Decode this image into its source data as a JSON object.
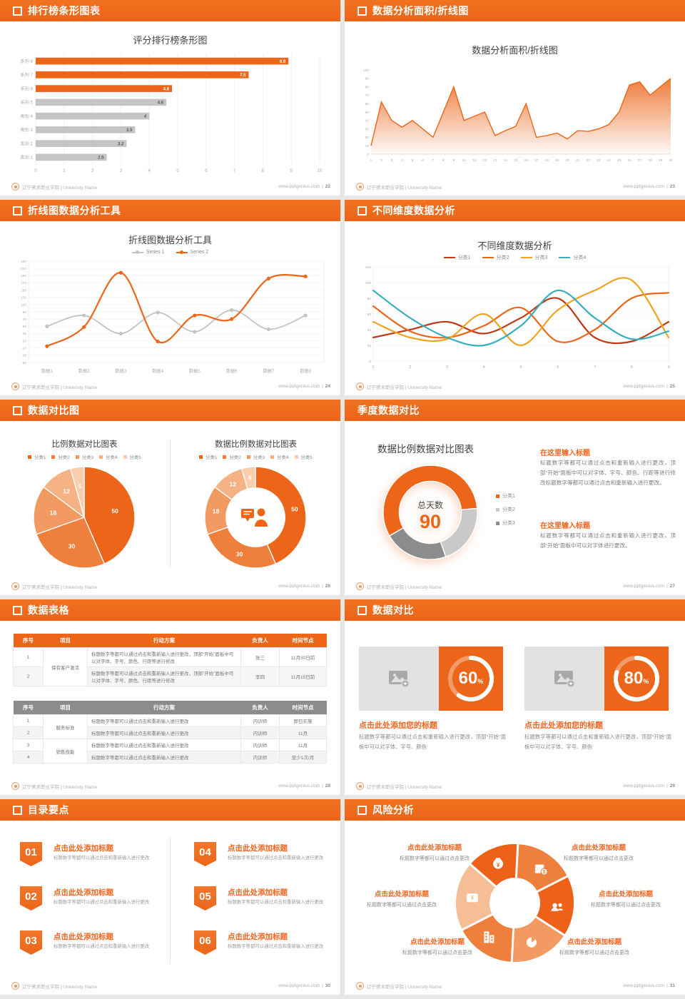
{
  "footer": {
    "school": "辽宁美术职业学院 | University Name",
    "site": "www.pptgenius.com",
    "divider": "|"
  },
  "accent": {
    "orange": "#EC6519",
    "header_orange": "#EE6C1D",
    "gray_bar": "#C5C5C5",
    "table_gray": "#8C8C8C"
  },
  "slides": [
    {
      "header": "排行榜条形图表",
      "page": "22"
    },
    {
      "header": "数据分析面积/折线图",
      "page": "23"
    },
    {
      "header": "折线图数据分析工具",
      "page": "24"
    },
    {
      "header": "不同维度数据分析",
      "page": "25"
    },
    {
      "header": "数据对比图",
      "page": "26"
    },
    {
      "header": "季度数据对比",
      "page": "27",
      "legend": [
        "分类1",
        "分类2",
        "分类3"
      ],
      "block1_title": "在这里输入标题",
      "block1_body": "标题数字等都可以通过点击和重新输入进行更改，顶部“开始”面板中可以对字体、字号、颜色、行距等进行修改标题数字等都可以通过点击和重新输入进行更改。",
      "block2_title": "在这里输入标题",
      "block2_body": "标题数字等都可以通过点击和重新输入进行更改，顶部“开始”面板中可以对字体进行更改。"
    },
    {
      "header": "数据表格",
      "page": "28",
      "table1": {
        "h": [
          "序号",
          "项目",
          "行动方案",
          "负责人",
          "时间节点"
        ],
        "item12": "保有客户激活",
        "r1": {
          "no": "1",
          "plan": "标题数字等都可以通过点击和重新输入进行更改，顶部“开始”面板中可以对字体、字号、颜色、行距等进行修改",
          "owner": "张三",
          "time": "11月30日前"
        },
        "r2": {
          "no": "2",
          "plan": "标题数字等都可以通过点击和重新输入进行更改，顶部“开始”面板中可以对字体、字号、颜色、行距等进行修改",
          "owner": "李四",
          "time": "11月15日前"
        }
      },
      "table2": {
        "h": [
          "序号",
          "项目",
          "行动方案",
          "负责人",
          "时间节点"
        ],
        "item12": "服务标准",
        "item34": "销售技能",
        "r1": {
          "no": "1",
          "plan": "标题数字等都可以通过点击和重新输入进行更改",
          "owner": "内训师",
          "time": "即日实施"
        },
        "r2": {
          "no": "2",
          "plan": "标题数字等都可以通过点击和重新输入进行更改",
          "owner": "内训师",
          "time": "11月"
        },
        "r3": {
          "no": "3",
          "plan": "标题数字等都可以通过点击和重新输入进行更改",
          "owner": "内训师",
          "time": "11月"
        },
        "r4": {
          "no": "4",
          "plan": "标题数字等都可以通过点击和重新输入进行更改",
          "owner": "内训师",
          "time": "至少1次/月"
        }
      }
    },
    {
      "header": "数据对比",
      "page": "29",
      "card_title": "点击此处添加您的标题",
      "card_body": "标题数字等都可以通过点击和重新输入进行更改，顶部“开始”面板中可以对字体、字号、颜色",
      "cards": [
        {
          "percent": "60",
          "symbol": "%"
        },
        {
          "percent": "80",
          "symbol": "%"
        }
      ]
    },
    {
      "header": "目录要点",
      "page": "30",
      "item_title": "点击此处添加标题",
      "item_desc": "标题数字等都可以通过点击和重新输入进行更改",
      "items": [
        {
          "num": "01"
        },
        {
          "num": "02"
        },
        {
          "num": "03"
        },
        {
          "num": "04"
        },
        {
          "num": "05"
        },
        {
          "num": "06"
        }
      ]
    },
    {
      "header": "风险分析",
      "page": "31",
      "item_title": "点击此处添加标题",
      "item_desc": "标题数字等都可以通过点击更改"
    }
  ],
  "chart_data": [
    {
      "type": "bar",
      "orientation": "horizontal",
      "target": "c-hbar",
      "title": "评分排行榜条形图",
      "categories": [
        "系列 8",
        "系列 7",
        "系列 6",
        "系列 5",
        "类别 4",
        "类别 3",
        "类别 2",
        "类别 1"
      ],
      "values": [
        8.9,
        7.5,
        4.8,
        4.6,
        4,
        3.5,
        3.2,
        2.5
      ],
      "bar_colors": [
        "#EC6519",
        "#EC6519",
        "#EC6519",
        "#C5C5C5",
        "#C5C5C5",
        "#C5C5C5",
        "#C5C5C5",
        "#C5C5C5"
      ],
      "xlim": [
        0,
        10
      ],
      "xtick_step": 1,
      "grid": true
    },
    {
      "type": "area",
      "target": "c-area",
      "title": "数据分析面积/折线图",
      "x": [
        1,
        2,
        3,
        4,
        5,
        6,
        7,
        8,
        9,
        10,
        11,
        12,
        13,
        14,
        15,
        16,
        17,
        18,
        19,
        20,
        21,
        22,
        23,
        24,
        25,
        26,
        27,
        28,
        29,
        30
      ],
      "values": [
        10,
        62,
        40,
        32,
        40,
        30,
        20,
        50,
        80,
        40,
        45,
        50,
        22,
        28,
        33,
        60,
        20,
        22,
        25,
        18,
        28,
        27,
        30,
        35,
        50,
        82,
        86,
        70,
        80,
        90
      ],
      "ylim": [
        0,
        100
      ],
      "ytick_step": 10,
      "color": "#EC6519"
    },
    {
      "type": "line",
      "target": "c-line2",
      "title": "折线图数据分析工具",
      "categories": [
        "数据1",
        "数据2",
        "数据3",
        "数据4",
        "数据5",
        "数据6",
        "数据7",
        "数据8"
      ],
      "series": [
        {
          "name": "Series 1",
          "color": "#C3C3C3",
          "values": [
            50,
            80,
            30,
            88,
            35,
            95,
            42,
            80
          ]
        },
        {
          "name": "Series 2",
          "color": "#EC6519",
          "values": [
            -5,
            48,
            198,
            8,
            80,
            70,
            182,
            188
          ]
        }
      ],
      "ylim": [
        -50,
        230
      ],
      "ytick_step": 20,
      "markers": true,
      "smooth": true,
      "legend_position": "top"
    },
    {
      "type": "line",
      "target": "c-line4",
      "title": "不同维度数据分析",
      "x": [
        1,
        2,
        3,
        4,
        5,
        6,
        7,
        8,
        9
      ],
      "series": [
        {
          "name": "分类1",
          "color": "#BE3A17",
          "values": [
            30,
            40,
            50,
            35,
            55,
            80,
            30,
            25,
            50
          ]
        },
        {
          "name": "分类2",
          "color": "#EC6519",
          "values": [
            70,
            38,
            30,
            45,
            68,
            25,
            40,
            80,
            87
          ]
        },
        {
          "name": "分类3",
          "color": "#EFA320",
          "values": [
            50,
            30,
            28,
            60,
            20,
            65,
            90,
            103,
            30
          ]
        },
        {
          "name": "分类4",
          "color": "#35AEBE",
          "values": [
            90,
            55,
            30,
            20,
            45,
            90,
            55,
            28,
            38
          ]
        }
      ],
      "ylim": [
        0,
        120
      ],
      "ytick_step": 20,
      "markers": false,
      "smooth": true,
      "legend_position": "top"
    },
    {
      "type": "pie",
      "target": "c-pie",
      "title": "比例数据对比图表",
      "labels": [
        "分类1",
        "分类2",
        "分类3",
        "分类4",
        "分类5"
      ],
      "values": [
        50,
        30,
        18,
        12,
        5
      ],
      "colors": [
        "#EC6519",
        "#EF7F3C",
        "#F29A62",
        "#F5B285",
        "#F9CDAE"
      ]
    },
    {
      "type": "donut",
      "target": "c-donut5",
      "title": "数据比例数据对比图表",
      "labels": [
        "分类1",
        "分类2",
        "分类3",
        "分类4",
        "分类5"
      ],
      "values": [
        50,
        30,
        18,
        12,
        5
      ],
      "colors": [
        "#EC6519",
        "#EF7F3C",
        "#F29A62",
        "#F5B285",
        "#F9CDAE"
      ],
      "inner_ratio": 0.58,
      "center_icon": "person-icon"
    },
    {
      "type": "donut",
      "target": "c-donut3",
      "title": "数据比例数据对比图表",
      "labels": [
        "分类1",
        "分类2",
        "分类3"
      ],
      "values": [
        57,
        21,
        22
      ],
      "colors": [
        "#EC6519",
        "#C9C9C9",
        "#8C8C8C"
      ],
      "inner_ratio": 0.66,
      "start_angle": 240,
      "no_slice_labels": true,
      "center_label": "总天数",
      "center_value": "90"
    },
    {
      "type": "ring",
      "target": "c-ring60",
      "percent": 60
    },
    {
      "type": "ring",
      "target": "c-ring80",
      "percent": 80
    },
    {
      "type": "pinwheel",
      "target": "c-pinwheel",
      "segments": 6,
      "icons": [
        "money-bag-icon",
        "coins-icon",
        "people-icon",
        "pie-icon",
        "building-icon",
        "wallet-icon"
      ]
    }
  ]
}
